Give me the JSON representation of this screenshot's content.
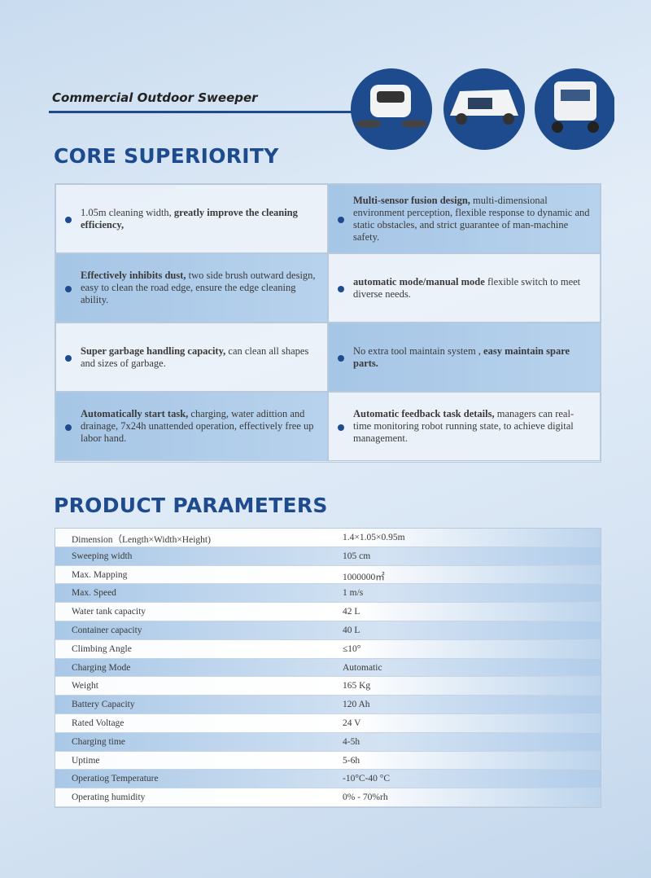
{
  "header": {
    "title": "Commercial Outdoor Sweeper"
  },
  "core": {
    "title": "CORE SUPERIORITY",
    "cells": [
      {
        "segments": [
          {
            "text": "1.05m cleaning width,",
            "bold": false
          },
          {
            "text": "greatly improve the cleaning efficiency,",
            "bold": true
          }
        ]
      },
      {
        "segments": [
          {
            "text": "Multi-sensor fusion design,",
            "bold": true
          },
          {
            "text": "multi-dimensional environment perception, flexible response to dynamic and static obstacles, and strict guarantee of man-machine safety.",
            "bold": false
          }
        ]
      },
      {
        "segments": [
          {
            "text": "Effectively inhibits dust,",
            "bold": true
          },
          {
            "text": "two side brush outward design, easy to clean the road edge, ensure the edge cleaning ability.",
            "bold": false
          }
        ]
      },
      {
        "segments": [
          {
            "text": "automatic mode/manual mode",
            "bold": true
          },
          {
            "text": "flexible switch to meet diverse needs.",
            "bold": false
          }
        ]
      },
      {
        "segments": [
          {
            "text": "Super garbage handling capacity,",
            "bold": true
          },
          {
            "text": "can clean all shapes and sizes of garbage.",
            "bold": false
          }
        ]
      },
      {
        "segments": [
          {
            "text": "No extra tool maintain system ,",
            "bold": false
          },
          {
            "text": "easy maintain spare parts.",
            "bold": true
          }
        ]
      },
      {
        "segments": [
          {
            "text": "Automatically start task,",
            "bold": true
          },
          {
            "text": "charging, water adittion and drainage, 7x24h unattended operation, effectively free up labor hand.",
            "bold": false
          }
        ]
      },
      {
        "segments": [
          {
            "text": "Automatic feedback task details,",
            "bold": true
          },
          {
            "text": "managers can real-time monitoring robot running state, to achieve digital management.",
            "bold": false
          }
        ]
      }
    ]
  },
  "params": {
    "title": "PRODUCT PARAMETERS",
    "rows": [
      [
        "Dimension（Length×Width×Height)",
        "1.4×1.05×0.95m"
      ],
      [
        "Sweeping width",
        "105 cm"
      ],
      [
        "Max. Mapping",
        "1000000㎡"
      ],
      [
        "Max. Speed",
        "1 m/s"
      ],
      [
        "Water tank capacity",
        "42 L"
      ],
      [
        "Container capacity",
        "40 L"
      ],
      [
        "Climbing Angle",
        "≤10°"
      ],
      [
        "Charging Mode",
        "Automatic"
      ],
      [
        "Weight",
        "165 Kg"
      ],
      [
        "Battery Capacity",
        "120 Ah"
      ],
      [
        "Rated Voltage",
        "24 V"
      ],
      [
        "Charging time",
        "4-5h"
      ],
      [
        "Uptime",
        "5-6h"
      ],
      [
        "Operatiog Temperature",
        "-10°C-40 °C"
      ],
      [
        "Operating humidity",
        "0% - 70%rh"
      ]
    ]
  }
}
